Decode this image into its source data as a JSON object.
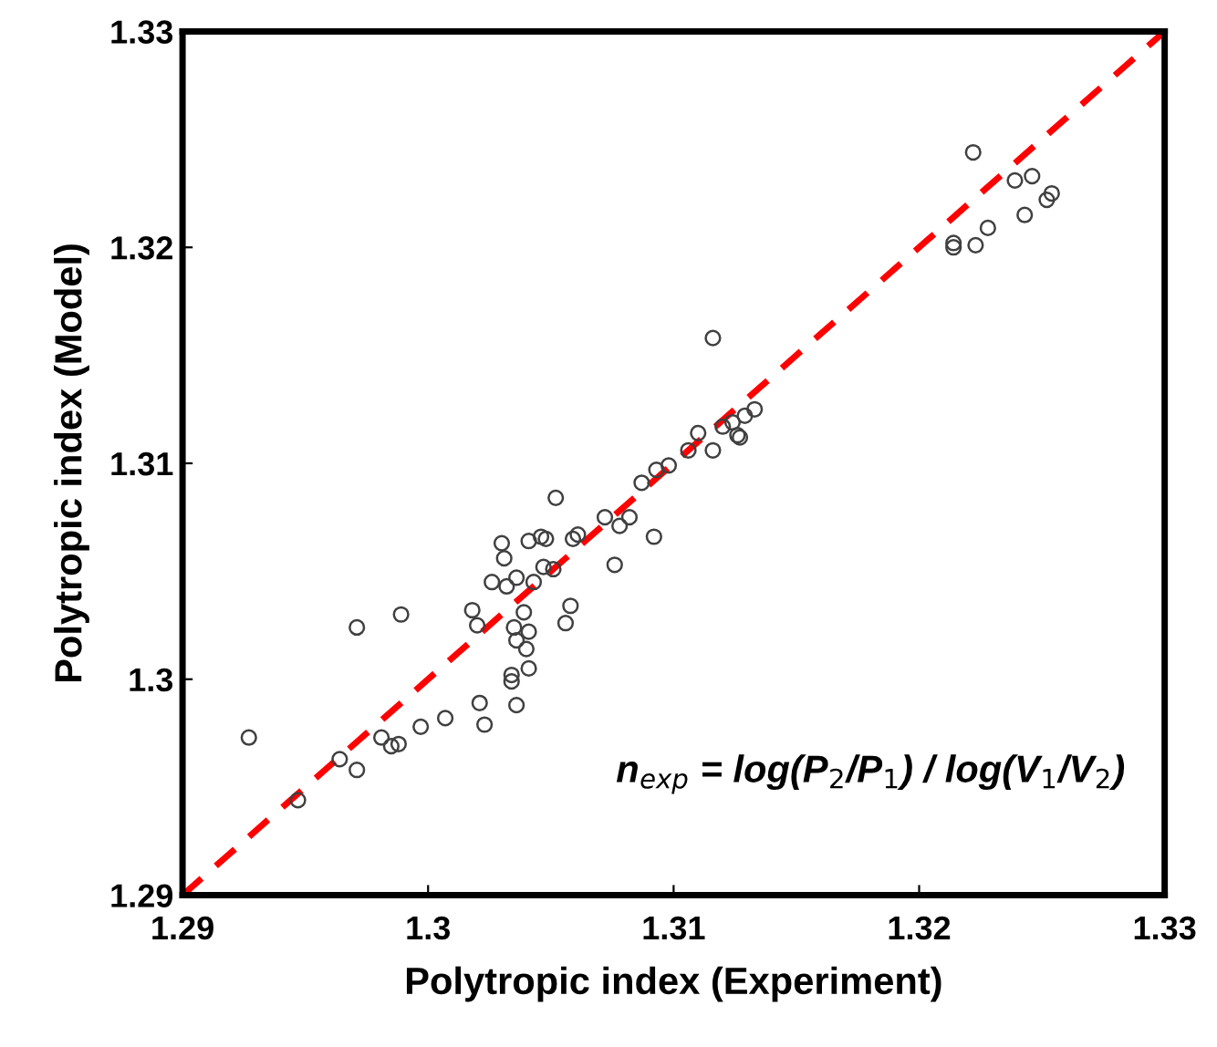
{
  "chart_data": {
    "type": "scatter",
    "xlabel": "Polytropic index (Experiment)",
    "ylabel": "Polytropic index (Model)",
    "xlim": [
      1.29,
      1.33
    ],
    "ylim": [
      1.29,
      1.33
    ],
    "xticks": [
      1.29,
      1.3,
      1.31,
      1.32,
      1.33
    ],
    "yticks": [
      1.29,
      1.3,
      1.31,
      1.32,
      1.33
    ],
    "grid": false,
    "legend": false,
    "annotations": [
      "n$_{exp}$ = log(P$_{2}$/P$_{1}$) / log(V$_{1}$/V$_{2}$)"
    ],
    "series": [
      {
        "color": "#404040",
        "marker": "circle",
        "x": [
          1.2927,
          1.2947,
          1.2964,
          1.2971,
          1.2971,
          1.2981,
          1.2985,
          1.2988,
          1.2989,
          1.2997,
          1.3007,
          1.3018,
          1.302,
          1.3023,
          1.3021,
          1.3026,
          1.303,
          1.3031,
          1.3032,
          1.3036,
          1.3036,
          1.3034,
          1.3034,
          1.3036,
          1.3035,
          1.3039,
          1.3043,
          1.3041,
          1.3046,
          1.3041,
          1.3041,
          1.304,
          1.3048,
          1.3047,
          1.3051,
          1.3056,
          1.3058,
          1.3052,
          1.3059,
          1.3061,
          1.3072,
          1.3076,
          1.3078,
          1.3082,
          1.3087,
          1.3092,
          1.3093,
          1.3098,
          1.3106,
          1.311,
          1.3116,
          1.3116,
          1.312,
          1.3124,
          1.3126,
          1.3127,
          1.3133,
          1.3129,
          1.3222,
          1.3214,
          1.3214,
          1.3223,
          1.3228,
          1.3239,
          1.3243,
          1.3246,
          1.3252,
          1.3254
        ],
        "values": [
          1.2973,
          1.2944,
          1.2963,
          1.2958,
          1.3024,
          1.2973,
          1.2969,
          1.297,
          1.303,
          1.2978,
          1.2982,
          1.3032,
          1.3025,
          1.2979,
          1.2989,
          1.3045,
          1.3063,
          1.3056,
          1.3043,
          1.3047,
          1.2988,
          1.2999,
          1.3002,
          1.3018,
          1.3024,
          1.3031,
          1.3045,
          1.3064,
          1.3066,
          1.3022,
          1.3005,
          1.3014,
          1.3065,
          1.3052,
          1.3051,
          1.3026,
          1.3034,
          1.3084,
          1.3065,
          1.3067,
          1.3075,
          1.3053,
          1.3071,
          1.3075,
          1.3091,
          1.3066,
          1.3097,
          1.3099,
          1.3106,
          1.3114,
          1.3158,
          1.3106,
          1.3117,
          1.3119,
          1.3113,
          1.3112,
          1.3125,
          1.3122,
          1.3244,
          1.32,
          1.3202,
          1.3201,
          1.3209,
          1.3231,
          1.3215,
          1.3233,
          1.3222,
          1.3225
        ]
      },
      {
        "type": "line",
        "color": "#ff0000",
        "line_style": "dashed",
        "marker": "none",
        "x": [
          1.29,
          1.33
        ],
        "values": [
          1.29,
          1.33
        ]
      }
    ]
  }
}
